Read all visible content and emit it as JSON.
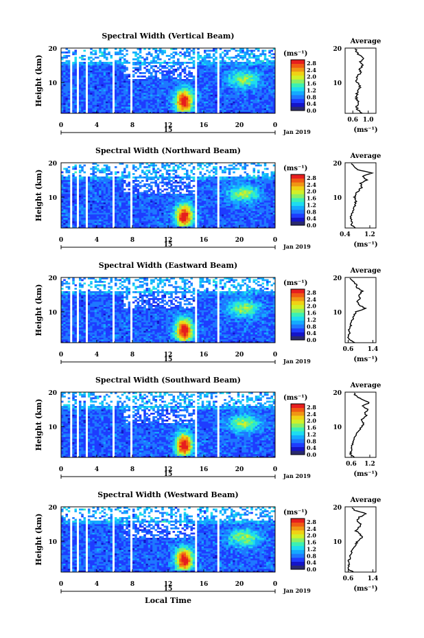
{
  "figure": {
    "date_label": "Jan 2019",
    "xlabel": "Local Time",
    "ylabel": "Height (km)",
    "colorbar_unit": "(ms⁻¹)",
    "avg_title": "Average",
    "avg_xlabel": "(ms⁻¹)",
    "day_label": "15"
  },
  "chart_data": [
    {
      "type": "heatmap",
      "title": "Spectral Width (Vertical Beam)",
      "xlim": [
        0,
        24
      ],
      "ylim": [
        1,
        20
      ],
      "x_ticks": [
        "0",
        "4",
        "8",
        "12",
        "16",
        "20",
        "0"
      ],
      "y_ticks": [
        "20",
        "10"
      ],
      "colorbar_ticks": [
        "2.8",
        "2.4",
        "2.0",
        "1.6",
        "1.2",
        "0.8",
        "0.4",
        "0.0"
      ],
      "colorbar_range": [
        0,
        3.0
      ],
      "avg_profile": {
        "xlim": [
          0.4,
          1.2
        ],
        "x_ticks": [
          "0.6",
          "1.0"
        ],
        "height_km": [
          1,
          2,
          3,
          4,
          5,
          6,
          7,
          8,
          9,
          10,
          11,
          12,
          13,
          14,
          15,
          16,
          17,
          18,
          19,
          20
        ],
        "width_ms": [
          0.85,
          0.72,
          0.7,
          0.75,
          0.7,
          0.68,
          0.72,
          0.75,
          0.8,
          0.7,
          0.68,
          0.75,
          0.8,
          0.78,
          0.85,
          0.8,
          0.9,
          0.75,
          0.7,
          0.65
        ]
      }
    },
    {
      "type": "heatmap",
      "title": "Spectral Width (Northward Beam)",
      "xlim": [
        0,
        24
      ],
      "ylim": [
        1,
        20
      ],
      "x_ticks": [
        "0",
        "4",
        "8",
        "12",
        "16",
        "20",
        "0"
      ],
      "y_ticks": [
        "20",
        "10"
      ],
      "colorbar_ticks": [
        "2.8",
        "2.4",
        "2.0",
        "1.6",
        "1.2",
        "0.8",
        "0.4",
        "0.0"
      ],
      "colorbar_range": [
        0,
        3.0
      ],
      "avg_profile": {
        "xlim": [
          0.4,
          1.4
        ],
        "x_ticks": [
          "0.4",
          "1.2"
        ],
        "height_km": [
          1,
          2,
          3,
          4,
          5,
          6,
          7,
          8,
          9,
          10,
          11,
          12,
          13,
          14,
          15,
          16,
          17,
          18,
          19,
          20
        ],
        "width_ms": [
          0.75,
          0.6,
          0.62,
          0.58,
          0.62,
          0.65,
          0.7,
          0.72,
          0.75,
          0.7,
          0.75,
          0.85,
          0.95,
          0.9,
          1.1,
          0.95,
          1.25,
          0.8,
          0.7,
          0.6
        ]
      }
    },
    {
      "type": "heatmap",
      "title": "Spectral Width (Eastward Beam)",
      "xlim": [
        0,
        24
      ],
      "ylim": [
        1,
        20
      ],
      "x_ticks": [
        "0",
        "4",
        "8",
        "12",
        "16",
        "20",
        "0"
      ],
      "y_ticks": [
        "20",
        "10"
      ],
      "colorbar_ticks": [
        "2.8",
        "2.4",
        "2.0",
        "1.6",
        "1.2",
        "0.8",
        "0.4",
        "0.0"
      ],
      "colorbar_range": [
        0,
        3.0
      ],
      "avg_profile": {
        "xlim": [
          0.5,
          1.5
        ],
        "x_ticks": [
          "0.6",
          "1.4"
        ],
        "height_km": [
          1,
          2,
          3,
          4,
          5,
          6,
          7,
          8,
          9,
          10,
          11,
          12,
          13,
          14,
          15,
          16,
          17,
          18,
          19,
          20
        ],
        "width_ms": [
          0.8,
          0.62,
          0.6,
          0.65,
          0.62,
          0.68,
          0.7,
          0.75,
          0.8,
          0.85,
          1.15,
          0.95,
          0.9,
          1.0,
          0.95,
          1.05,
          0.9,
          0.85,
          0.75,
          0.65
        ]
      }
    },
    {
      "type": "heatmap",
      "title": "Spectral Width (Southward Beam)",
      "xlim": [
        0,
        24
      ],
      "ylim": [
        1,
        20
      ],
      "x_ticks": [
        "0",
        "4",
        "8",
        "12",
        "16",
        "20",
        "0"
      ],
      "y_ticks": [
        "20",
        "10"
      ],
      "colorbar_ticks": [
        "2.8",
        "2.4",
        "2.0",
        "1.6",
        "1.2",
        "0.8",
        "0.4",
        "0.0"
      ],
      "colorbar_range": [
        0,
        3.0
      ],
      "avg_profile": {
        "xlim": [
          0.4,
          1.4
        ],
        "x_ticks": [
          "0.6",
          "1.2"
        ],
        "height_km": [
          1,
          2,
          3,
          4,
          5,
          6,
          7,
          8,
          9,
          10,
          11,
          12,
          13,
          14,
          15,
          16,
          17,
          18,
          19,
          20
        ],
        "width_ms": [
          0.7,
          0.58,
          0.6,
          0.62,
          0.65,
          0.68,
          0.72,
          0.8,
          0.85,
          0.95,
          1.0,
          0.9,
          1.1,
          1.05,
          1.15,
          0.95,
          1.2,
          0.9,
          0.75,
          0.65
        ]
      }
    },
    {
      "type": "heatmap",
      "title": "Spectral Width (Westward Beam)",
      "xlim": [
        0,
        24
      ],
      "ylim": [
        1,
        20
      ],
      "x_ticks": [
        "0",
        "4",
        "8",
        "12",
        "16",
        "20",
        "0"
      ],
      "y_ticks": [
        "20",
        "10"
      ],
      "colorbar_ticks": [
        "2.8",
        "2.4",
        "2.0",
        "1.6",
        "1.2",
        "0.8",
        "0.4",
        "0.0"
      ],
      "colorbar_range": [
        0,
        3.0
      ],
      "avg_profile": {
        "xlim": [
          0.5,
          1.5
        ],
        "x_ticks": [
          "0.6",
          "1.4"
        ],
        "height_km": [
          1,
          2,
          3,
          4,
          5,
          6,
          7,
          8,
          9,
          10,
          11,
          12,
          13,
          14,
          15,
          16,
          17,
          18,
          19,
          20
        ],
        "width_ms": [
          0.75,
          0.6,
          0.62,
          0.6,
          0.65,
          0.68,
          0.7,
          0.75,
          0.85,
          0.9,
          1.05,
          1.0,
          0.85,
          0.95,
          1.0,
          0.9,
          0.95,
          1.2,
          0.8,
          0.7
        ]
      }
    }
  ]
}
